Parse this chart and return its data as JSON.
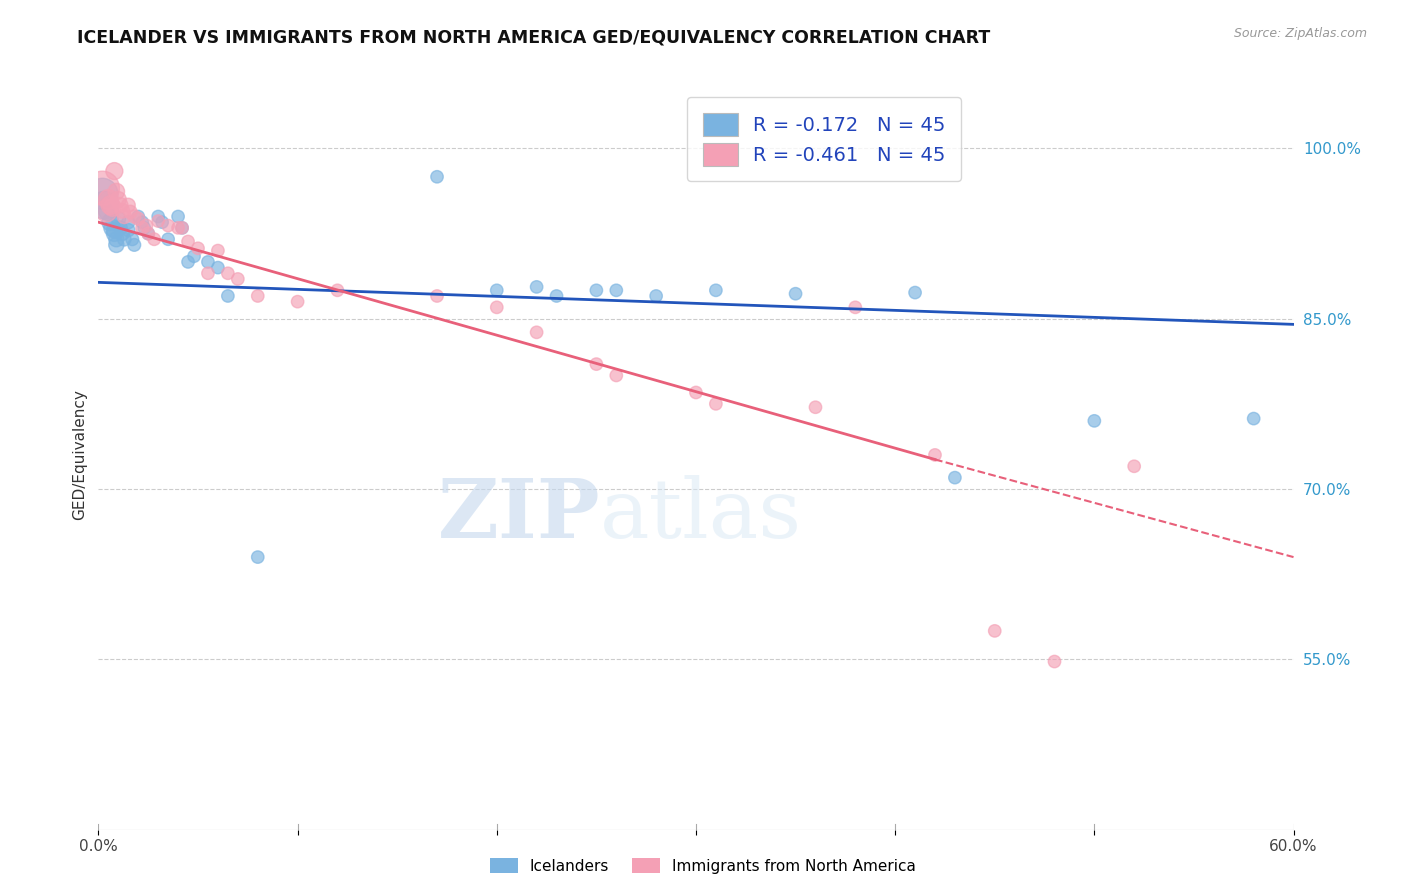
{
  "title": "ICELANDER VS IMMIGRANTS FROM NORTH AMERICA GED/EQUIVALENCY CORRELATION CHART",
  "source": "Source: ZipAtlas.com",
  "ylabel": "GED/Equivalency",
  "xmin": 0.0,
  "xmax": 0.6,
  "ymin": 0.4,
  "ymax": 1.06,
  "right_yticks": [
    1.0,
    0.85,
    0.7,
    0.55
  ],
  "right_yticklabels": [
    "100.0%",
    "85.0%",
    "70.0%",
    "55.0%"
  ],
  "xticks": [
    0.0,
    0.1,
    0.2,
    0.3,
    0.4,
    0.5,
    0.6
  ],
  "xticklabels": [
    "0.0%",
    "",
    "",
    "",
    "",
    "",
    "60.0%"
  ],
  "blue_color": "#7ab3e0",
  "pink_color": "#f4a0b5",
  "blue_line_color": "#2255bb",
  "pink_line_color": "#e8607a",
  "watermark_zip": "ZIP",
  "watermark_atlas": "atlas",
  "grid_color": "#cccccc",
  "bg_color": "#ffffff",
  "blue_line_x0": 0.0,
  "blue_line_y0": 0.882,
  "blue_line_x1": 0.6,
  "blue_line_y1": 0.845,
  "pink_line_x0": 0.0,
  "pink_line_y0": 0.935,
  "pink_line_x1_solid": 0.42,
  "pink_line_y1_solid": 0.726,
  "pink_line_x1_dash": 0.6,
  "pink_line_y1_dash": 0.64,
  "blue_scatter_x": [
    0.002,
    0.003,
    0.005,
    0.006,
    0.007,
    0.008,
    0.008,
    0.009,
    0.009,
    0.01,
    0.011,
    0.012,
    0.013,
    0.015,
    0.015,
    0.017,
    0.018,
    0.02,
    0.022,
    0.023,
    0.025,
    0.03,
    0.032,
    0.035,
    0.04,
    0.042,
    0.045,
    0.048,
    0.055,
    0.06,
    0.065,
    0.08,
    0.17,
    0.2,
    0.22,
    0.23,
    0.25,
    0.26,
    0.28,
    0.31,
    0.35,
    0.41,
    0.43,
    0.5,
    0.58
  ],
  "blue_scatter_y": [
    0.96,
    0.95,
    0.945,
    0.935,
    0.93,
    0.928,
    0.925,
    0.92,
    0.915,
    0.938,
    0.93,
    0.925,
    0.92,
    0.935,
    0.928,
    0.92,
    0.915,
    0.94,
    0.935,
    0.93,
    0.925,
    0.94,
    0.935,
    0.92,
    0.94,
    0.93,
    0.9,
    0.905,
    0.9,
    0.895,
    0.87,
    0.64,
    0.975,
    0.875,
    0.878,
    0.87,
    0.875,
    0.875,
    0.87,
    0.875,
    0.872,
    0.873,
    0.71,
    0.76,
    0.762
  ],
  "blue_scatter_sizes": [
    500,
    400,
    200,
    150,
    150,
    130,
    130,
    120,
    120,
    110,
    100,
    100,
    95,
    90,
    90,
    85,
    85,
    80,
    80,
    80,
    80,
    80,
    80,
    80,
    80,
    80,
    80,
    80,
    80,
    80,
    80,
    80,
    80,
    80,
    80,
    80,
    80,
    80,
    80,
    80,
    80,
    80,
    80,
    80,
    80
  ],
  "pink_scatter_x": [
    0.002,
    0.004,
    0.005,
    0.006,
    0.007,
    0.008,
    0.009,
    0.01,
    0.011,
    0.012,
    0.013,
    0.015,
    0.016,
    0.018,
    0.02,
    0.022,
    0.024,
    0.025,
    0.028,
    0.03,
    0.035,
    0.04,
    0.042,
    0.045,
    0.05,
    0.055,
    0.06,
    0.065,
    0.07,
    0.08,
    0.1,
    0.12,
    0.17,
    0.2,
    0.22,
    0.25,
    0.26,
    0.3,
    0.31,
    0.36,
    0.38,
    0.42,
    0.45,
    0.48,
    0.52
  ],
  "pink_scatter_y": [
    0.965,
    0.945,
    0.955,
    0.95,
    0.948,
    0.98,
    0.962,
    0.955,
    0.95,
    0.945,
    0.94,
    0.95,
    0.944,
    0.94,
    0.938,
    0.93,
    0.932,
    0.925,
    0.92,
    0.936,
    0.932,
    0.93,
    0.93,
    0.918,
    0.912,
    0.89,
    0.91,
    0.89,
    0.885,
    0.87,
    0.865,
    0.875,
    0.87,
    0.86,
    0.838,
    0.81,
    0.8,
    0.785,
    0.775,
    0.772,
    0.86,
    0.73,
    0.575,
    0.548,
    0.72
  ],
  "pink_scatter_sizes": [
    600,
    250,
    200,
    180,
    160,
    150,
    140,
    130,
    120,
    110,
    105,
    100,
    95,
    90,
    88,
    85,
    85,
    83,
    82,
    80,
    80,
    80,
    80,
    80,
    80,
    80,
    80,
    80,
    80,
    80,
    80,
    80,
    80,
    80,
    80,
    80,
    80,
    80,
    80,
    80,
    80,
    80,
    80,
    80,
    80
  ]
}
